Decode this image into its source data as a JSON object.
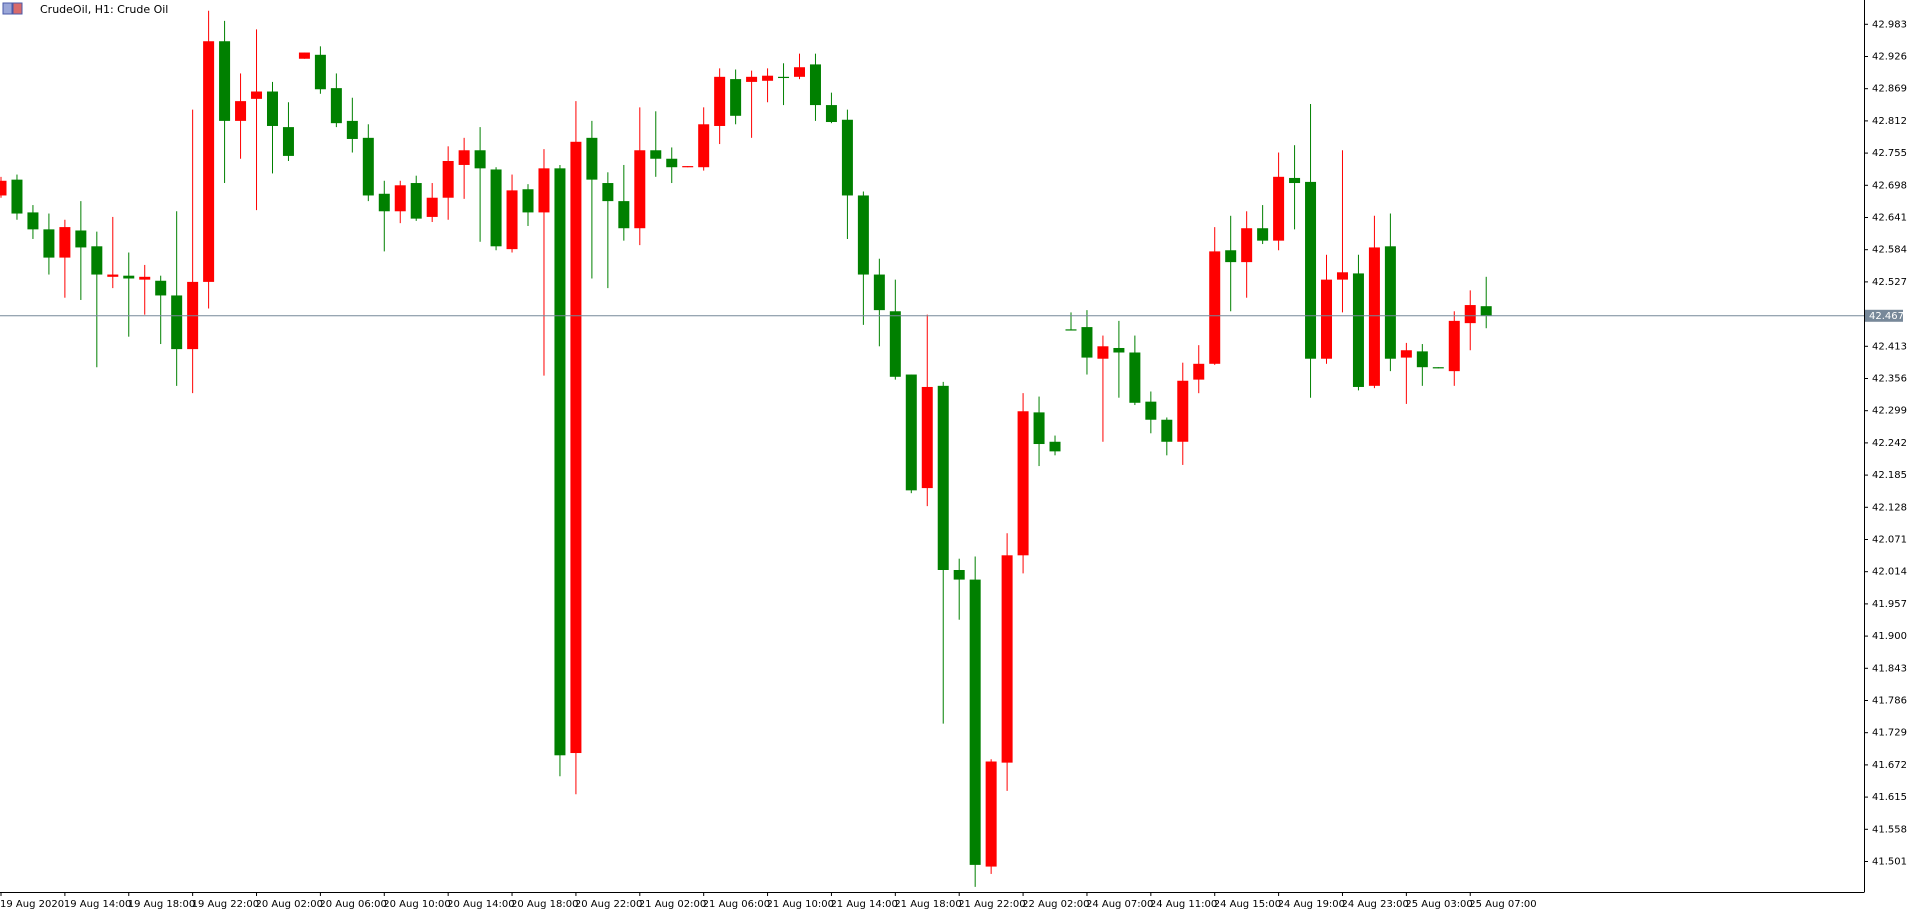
{
  "chart_data": {
    "type": "candlestick",
    "title": "CrudeOil, H1:  Crude Oil",
    "up_color": "#ff0000",
    "down_color": "#008000",
    "current_price": 42.467,
    "ylim": [
      41.447,
      43.026
    ],
    "yticks": [
      42.983,
      42.926,
      42.869,
      42.812,
      42.755,
      42.698,
      42.641,
      42.584,
      42.527,
      42.413,
      42.356,
      42.299,
      42.242,
      42.185,
      42.128,
      42.071,
      42.014,
      41.957,
      {
        "value": 41.9,
        "label": "41.900"
      },
      41.843,
      41.786,
      41.729,
      41.672,
      41.615,
      41.558,
      41.501
    ],
    "categories": [
      "19 Aug 2020",
      null,
      null,
      null,
      "19 Aug 14:00",
      null,
      null,
      null,
      "19 Aug 18:00",
      null,
      null,
      null,
      "19 Aug 22:00",
      null,
      null,
      null,
      "20 Aug 02:00",
      null,
      null,
      null,
      "20 Aug 06:00",
      null,
      null,
      null,
      "20 Aug 10:00",
      null,
      null,
      null,
      "20 Aug 14:00",
      null,
      null,
      null,
      "20 Aug 18:00",
      null,
      null,
      null,
      "20 Aug 22:00",
      null,
      null,
      null,
      "21 Aug 02:00",
      null,
      null,
      null,
      "21 Aug 06:00",
      null,
      null,
      null,
      "21 Aug 10:00",
      null,
      null,
      null,
      "21 Aug 14:00",
      null,
      null,
      null,
      "21 Aug 18:00",
      null,
      null,
      null,
      "21 Aug 22:00",
      null,
      null,
      null,
      "22 Aug 02:00",
      null,
      null,
      null,
      "24 Aug 07:00",
      null,
      null,
      null,
      "24 Aug 11:00",
      null,
      null,
      null,
      "24 Aug 15:00",
      null,
      null,
      null,
      "24 Aug 19:00",
      null,
      null,
      null,
      "24 Aug 23:00",
      null,
      null,
      null,
      "25 Aug 03:00",
      null,
      null,
      null,
      "25 Aug 07:00",
      null
    ],
    "open": [
      42.68,
      42.708,
      42.65,
      42.62,
      42.57,
      42.618,
      42.59,
      42.536,
      42.538,
      42.531,
      42.529,
      42.503,
      42.408,
      42.527,
      42.953,
      42.812,
      42.851,
      42.864,
      42.801,
      42.922,
      42.929,
      42.87,
      42.812,
      42.782,
      42.683,
      42.652,
      42.702,
      42.642,
      42.676,
      42.734,
      42.76,
      42.726,
      42.585,
      42.691,
      42.65,
      42.728,
      41.693,
      42.782,
      42.702,
      42.67,
      42.622,
      42.76,
      42.745,
      42.73,
      42.73,
      42.803,
      42.886,
      42.881,
      42.883,
      42.89,
      42.89,
      42.912,
      42.84,
      42.814,
      42.68,
      42.54,
      42.475,
      42.363,
      42.162,
      42.343,
      42.017,
      42.0,
      41.492,
      41.676,
      42.043,
      42.296,
      42.244,
      42.443,
      42.447,
      42.391,
      42.41,
      42.402,
      42.315,
      42.283,
      42.244,
      42.354,
      42.382,
      42.583,
      42.562,
      42.622,
      42.6,
      42.711,
      42.704,
      42.391,
      42.531,
      42.542,
      42.343,
      42.59,
      42.393,
      42.404,
      42.376,
      42.369,
      42.454,
      42.484
    ],
    "high": [
      42.713,
      42.717,
      42.663,
      42.648,
      42.637,
      42.67,
      42.616,
      42.642,
      42.579,
      42.557,
      42.538,
      42.652,
      42.832,
      43.007,
      42.989,
      42.896,
      42.974,
      42.881,
      42.845,
      42.933,
      42.944,
      42.896,
      42.853,
      42.806,
      42.706,
      42.706,
      42.715,
      42.702,
      42.767,
      42.782,
      42.801,
      42.73,
      42.717,
      42.7,
      42.762,
      42.734,
      42.847,
      42.812,
      42.721,
      42.734,
      42.836,
      42.829,
      42.765,
      42.732,
      42.836,
      42.905,
      42.903,
      42.901,
      42.905,
      42.914,
      42.931,
      42.931,
      42.862,
      42.832,
      42.687,
      42.568,
      42.531,
      42.363,
      42.469,
      42.35,
      42.037,
      42.041,
      41.682,
      42.082,
      42.33,
      42.324,
      42.255,
      42.473,
      42.477,
      42.432,
      42.458,
      42.432,
      42.333,
      42.287,
      42.384,
      42.415,
      42.624,
      42.644,
      42.652,
      42.663,
      42.756,
      42.769,
      42.842,
      42.575,
      42.76,
      42.575,
      42.644,
      42.648,
      42.419,
      42.417,
      42.376,
      42.475,
      42.512,
      42.536
    ],
    "low": [
      42.676,
      42.637,
      42.603,
      42.54,
      42.499,
      42.495,
      42.376,
      42.516,
      42.43,
      42.469,
      42.417,
      42.343,
      42.33,
      42.48,
      42.702,
      42.745,
      42.654,
      42.719,
      42.741,
      42.922,
      42.86,
      42.801,
      42.756,
      42.67,
      42.581,
      42.631,
      42.635,
      42.633,
      42.637,
      42.674,
      42.598,
      42.583,
      42.579,
      42.626,
      42.361,
      41.652,
      41.62,
      42.533,
      42.516,
      42.6,
      42.592,
      42.713,
      42.702,
      42.73,
      42.724,
      42.771,
      42.806,
      42.782,
      42.845,
      42.84,
      42.886,
      42.812,
      42.808,
      42.603,
      42.451,
      42.413,
      42.354,
      42.153,
      42.13,
      41.745,
      41.929,
      41.456,
      41.479,
      41.626,
      42.011,
      42.201,
      42.22,
      42.441,
      42.363,
      42.244,
      42.322,
      42.309,
      42.259,
      42.22,
      42.203,
      42.33,
      42.38,
      42.475,
      42.499,
      42.594,
      42.583,
      42.62,
      42.322,
      42.382,
      42.473,
      42.335,
      42.339,
      42.369,
      42.311,
      42.343,
      42.374,
      42.343,
      42.406,
      42.445
    ],
    "close": [
      42.706,
      42.648,
      42.62,
      42.57,
      42.624,
      42.588,
      42.54,
      42.54,
      42.533,
      42.536,
      42.503,
      42.408,
      42.527,
      42.953,
      42.812,
      42.847,
      42.864,
      42.803,
      42.75,
      42.933,
      42.868,
      42.808,
      42.78,
      42.68,
      42.652,
      42.698,
      42.639,
      42.676,
      42.741,
      42.76,
      42.728,
      42.59,
      42.689,
      42.65,
      42.728,
      41.689,
      42.775,
      42.708,
      42.67,
      42.622,
      42.76,
      42.745,
      42.73,
      42.732,
      42.806,
      42.89,
      42.821,
      42.89,
      42.892,
      42.888,
      42.907,
      42.84,
      42.81,
      42.68,
      42.54,
      42.477,
      42.359,
      42.158,
      42.341,
      42.017,
      42.0,
      41.495,
      41.678,
      42.043,
      42.298,
      42.24,
      42.227,
      42.441,
      42.393,
      42.413,
      42.402,
      42.313,
      42.283,
      42.244,
      42.352,
      42.382,
      42.581,
      42.562,
      42.622,
      42.6,
      42.713,
      42.702,
      42.391,
      42.531,
      42.544,
      42.341,
      42.588,
      42.391,
      42.406,
      42.376,
      42.374,
      42.458,
      42.486,
      42.467
    ]
  }
}
